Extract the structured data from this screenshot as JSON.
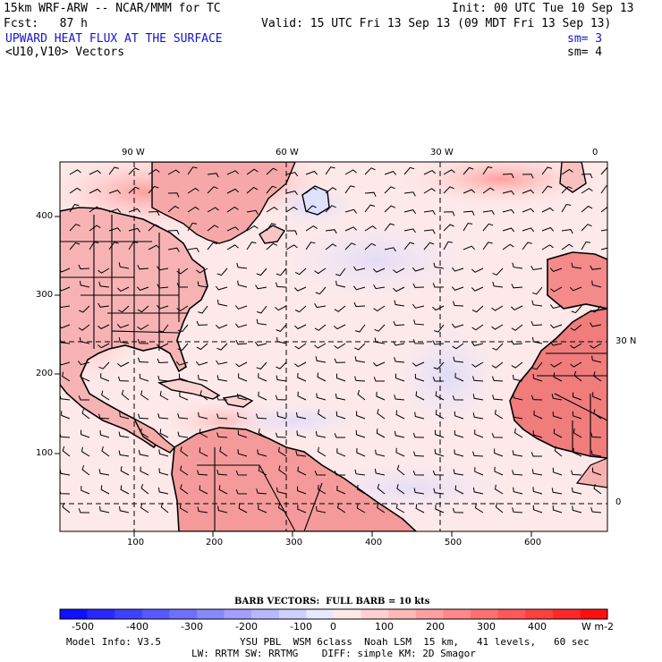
{
  "header": {
    "model": "15km WRF-ARW -- NCAR/MMM for TC",
    "init": "Init: 00 UTC Tue 10 Sep 13",
    "fcst": "Fcst:   87 h",
    "valid": "Valid: 15 UTC Fri 13 Sep 13 (09 MDT Fri 13 Sep 13)",
    "field": "UPWARD HEAT FLUX AT THE SURFACE",
    "field_sm": "sm= 3",
    "vectors": "<U10,V10> Vectors",
    "vectors_sm": "sm= 4"
  },
  "axes": {
    "top_lon": [
      "90 W",
      "60 W",
      "30 W",
      "0"
    ],
    "right_lat": [
      "30 N",
      "0"
    ],
    "left_y": [
      "400",
      "300",
      "200",
      "100"
    ],
    "bottom_x": [
      "100",
      "200",
      "300",
      "400",
      "500",
      "600"
    ]
  },
  "barb_title": "BARB VECTORS:  FULL BARB = 10 kts",
  "colorbar": {
    "labels": [
      "-500",
      "-400",
      "-300",
      "-200",
      "-100",
      "0",
      "100",
      "200",
      "300",
      "400"
    ],
    "unit": "W m-2",
    "colors": [
      "#1010ff",
      "#2828ff",
      "#4040ff",
      "#5858ff",
      "#7070ff",
      "#8888ff",
      "#a0a0ff",
      "#b8b8ff",
      "#d0d0ff",
      "#e8e8ff",
      "#ffe8e8",
      "#ffd0d0",
      "#ffb8b8",
      "#ffa0a0",
      "#ff8888",
      "#ff7070",
      "#ff5858",
      "#ff4040",
      "#ff2828",
      "#ff1010"
    ]
  },
  "footer": {
    "model_info": "Model Info: V3.5",
    "line1": "YSU PBL  WSM 6class  Noah LSM  15 km,   41 levels,   60 sec",
    "line2": "LW: RRTM SW: RRTMG    DIFF: simple KM: 2D Smagor"
  }
}
